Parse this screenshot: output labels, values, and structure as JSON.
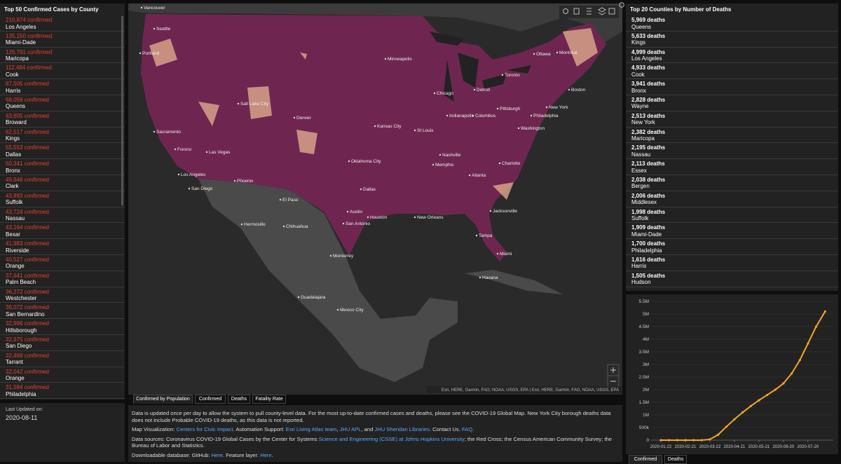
{
  "left_panel": {
    "title": "Top 50 Confirmed Cases by County",
    "items": [
      {
        "count": "210,874 confirmed",
        "name": "Los Angeles"
      },
      {
        "count": "135,150 confirmed",
        "name": "Miami-Dade"
      },
      {
        "count": "126,791 confirmed",
        "name": "Maricopa"
      },
      {
        "count": "112,484 confirmed",
        "name": "Cook"
      },
      {
        "count": "87,505 confirmed",
        "name": "Harris"
      },
      {
        "count": "68,059 confirmed",
        "name": "Queens"
      },
      {
        "count": "63,605 confirmed",
        "name": "Broward"
      },
      {
        "count": "62,517 confirmed",
        "name": "Kings"
      },
      {
        "count": "55,553 confirmed",
        "name": "Dallas"
      },
      {
        "count": "50,341 confirmed",
        "name": "Bronx"
      },
      {
        "count": "49,646 confirmed",
        "name": "Clark"
      },
      {
        "count": "43,893 confirmed",
        "name": "Suffolk"
      },
      {
        "count": "43,724 confirmed",
        "name": "Nassau"
      },
      {
        "count": "43,164 confirmed",
        "name": "Bexar"
      },
      {
        "count": "41,983 confirmed",
        "name": "Riverside"
      },
      {
        "count": "40,527 confirmed",
        "name": "Orange"
      },
      {
        "count": "37,641 confirmed",
        "name": "Palm Beach"
      },
      {
        "count": "36,272 confirmed",
        "name": "Westchester"
      },
      {
        "count": "36,072 confirmed",
        "name": "San Bernardino"
      },
      {
        "count": "32,996 confirmed",
        "name": "Hillsborough"
      },
      {
        "count": "32,975 confirmed",
        "name": "San Diego"
      },
      {
        "count": "32,469 confirmed",
        "name": "Tarrant"
      },
      {
        "count": "32,042 confirmed",
        "name": "Orange"
      },
      {
        "count": "31,584 confirmed",
        "name": "Philadelphia"
      }
    ]
  },
  "last_updated": {
    "label": "Last Updated on:",
    "date": "2020-08-11"
  },
  "right_panel": {
    "title": "Top 20 Counties by Number of Deaths",
    "items": [
      {
        "count": "5,969 deaths",
        "name": "Queens"
      },
      {
        "count": "5,633 deaths",
        "name": "Kings"
      },
      {
        "count": "4,999 deaths",
        "name": "Los Angeles"
      },
      {
        "count": "4,933 deaths",
        "name": "Cook"
      },
      {
        "count": "3,941 deaths",
        "name": "Bronx"
      },
      {
        "count": "2,828 deaths",
        "name": "Wayne"
      },
      {
        "count": "2,513 deaths",
        "name": "New York"
      },
      {
        "count": "2,382 deaths",
        "name": "Maricopa"
      },
      {
        "count": "2,195 deaths",
        "name": "Nassau"
      },
      {
        "count": "2,113 deaths",
        "name": "Essex"
      },
      {
        "count": "2,038 deaths",
        "name": "Bergen"
      },
      {
        "count": "2,006 deaths",
        "name": "Middlesex"
      },
      {
        "count": "1,998 deaths",
        "name": "Suffolk"
      },
      {
        "count": "1,909 deaths",
        "name": "Miami-Dade"
      },
      {
        "count": "1,700 deaths",
        "name": "Philadelphia"
      },
      {
        "count": "1,616 deaths",
        "name": "Harris"
      },
      {
        "count": "1,505 deaths",
        "name": "Hudson"
      }
    ]
  },
  "map": {
    "labels": [
      "Vancouver",
      "Seattle",
      "Portland",
      "Salt Lake City",
      "Denver",
      "Minneapolis",
      "Chicago",
      "Detroit",
      "Toronto",
      "Ottawa",
      "Montréal",
      "Boston",
      "New York",
      "Philadelphia",
      "Washington",
      "Pittsburgh",
      "Columbus",
      "Indianapolis",
      "St Louis",
      "Kansas City",
      "Nashville",
      "Atlanta",
      "Charlotte",
      "Dallas",
      "Houston",
      "San Antonio",
      "Austin",
      "New Orleans",
      "Jacksonville",
      "Tampa",
      "Miami",
      "Phoenix",
      "Las Vegas",
      "Los Angeles",
      "San Diego",
      "Sacramento",
      "Fresno",
      "El Paso",
      "Memphis",
      "Oklahoma City",
      "Monterrey",
      "Mexico City",
      "Guadalajara",
      "Havana",
      "Hermosillo",
      "Chihuahua"
    ],
    "attribution": "Esri, HERE, Garmin, FAO, NOAA, USGS, EPA | Esri, HERE, Garmin, FAO, NOAA, USGS, EPA"
  },
  "map_tabs": [
    "Confirmed by Population",
    "Confirmed",
    "Deaths",
    "Fatality Rate"
  ],
  "info_text": [
    [
      {
        "text": "Data is updated once per day to allow the system to pull county-level data. For the most up-to-date confirmed cases and deaths, please see the COVID-19 Global Map. New York City borough deaths data does not include Probable COVID-19 deaths, as this data is not reported."
      }
    ],
    [
      {
        "text": "Map Visualization: "
      },
      {
        "text": "Centers for Civic Impact",
        "link": true
      },
      {
        "text": ". Automation Support: "
      },
      {
        "text": "Esri Living Atlas team",
        "link": true
      },
      {
        "text": ", "
      },
      {
        "text": "JHU APL",
        "link": true
      },
      {
        "text": ", and "
      },
      {
        "text": "JHU Sheridan Libraries",
        "link": true
      },
      {
        "text": ". Contact Us. "
      },
      {
        "text": "FAQ",
        "link": true
      },
      {
        "text": "."
      }
    ],
    [
      {
        "text": "Data sources: Coronavirus COVID-19 Global Cases by the Center for Systems "
      },
      {
        "text": "Science and Engineering (CSSE) at Johns Hopkins University",
        "link": true
      },
      {
        "text": "; the Red Cross; the Census American Community Survey; the Bureau of Labor and Statistics."
      }
    ],
    [
      {
        "text": "Downloadable database: GitHub: "
      },
      {
        "text": "Here",
        "link": true
      },
      {
        "text": ". Feature layer: "
      },
      {
        "text": "Here",
        "link": true
      },
      {
        "text": "."
      }
    ]
  ],
  "chart_data": {
    "type": "line",
    "color": "#f5a623",
    "x": [
      "2020-01-22",
      "2020-02-01",
      "2020-02-11",
      "2020-02-21",
      "2020-03-02",
      "2020-03-12",
      "2020-03-22",
      "2020-04-01",
      "2020-04-11",
      "2020-04-21",
      "2020-05-01",
      "2020-05-11",
      "2020-05-21",
      "2020-05-31",
      "2020-06-10",
      "2020-06-20",
      "2020-06-30",
      "2020-07-10",
      "2020-07-20",
      "2020-07-30",
      "2020-08-10"
    ],
    "values": [
      1,
      8,
      13,
      15,
      100,
      1600,
      33000,
      215000,
      530000,
      825000,
      1100000,
      1350000,
      1580000,
      1790000,
      2000000,
      2250000,
      2640000,
      3170000,
      3830000,
      4500000,
      5100000
    ],
    "xlim": [
      "2020-01-10",
      "2020-08-20"
    ],
    "xticks": [
      "2020-01-22",
      "2020-02-21",
      "2020-03-22",
      "2020-04-21",
      "2020-05-21",
      "2020-06-20",
      "2020-07-20"
    ],
    "ylim": [
      0,
      5500000
    ],
    "yticks": [
      0,
      {
        "value": 500000,
        "label": "500k"
      },
      {
        "value": 1000000,
        "label": "1M"
      },
      {
        "value": 1500000,
        "label": "1.5M"
      },
      {
        "value": 2000000,
        "label": "2M"
      },
      {
        "value": 2500000,
        "label": "2.5M"
      },
      {
        "value": 3000000,
        "label": "3M"
      },
      {
        "value": 3500000,
        "label": "3.5M"
      },
      {
        "value": 4000000,
        "label": "4M"
      },
      {
        "value": 4500000,
        "label": "4.5M"
      },
      {
        "value": 5000000,
        "label": "5M"
      },
      {
        "value": 5500000,
        "label": "5.5M"
      }
    ],
    "grid": true
  },
  "chart_tabs": [
    "Confirmed",
    "Deaths"
  ]
}
